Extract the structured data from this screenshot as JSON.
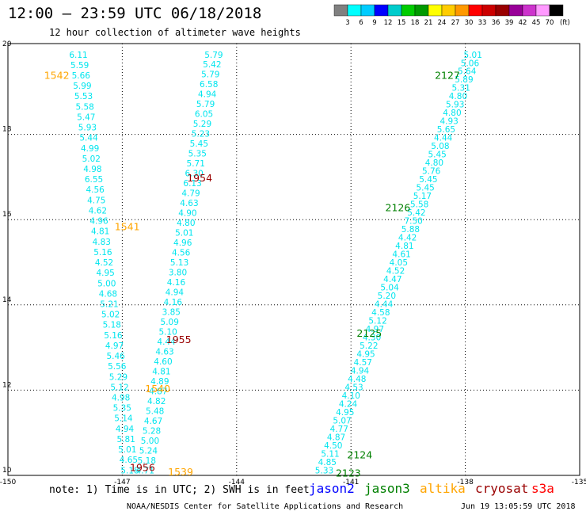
{
  "title": "12:00 – 23:59 UTC 06/18/2018",
  "subtitle": "12 hour collection of altimeter wave heights",
  "note": "note: 1) Time is in UTC; 2) SWH is in feet",
  "credit": "NOAA/NESDIS Center for Satellite Applications and Research",
  "timestamp": "Jun 19 13:05:59 UTC 2018",
  "colors": {
    "track": "#00e5ee",
    "jason2": "#0000ff",
    "jason3": "#008000",
    "altika": "#ffa500",
    "cryosat": "#990000",
    "s3a": "#ff0000"
  },
  "satellites": [
    "jason2",
    "jason3",
    "altika",
    "cryosat",
    "s3a"
  ],
  "colorbar": {
    "unit": "(ft)",
    "labels": [
      "3",
      "6",
      "9",
      "12",
      "15",
      "18",
      "21",
      "24",
      "27",
      "30",
      "33",
      "36",
      "39",
      "42",
      "45",
      "70"
    ],
    "colors": [
      "#808080",
      "#00ffff",
      "#00ccff",
      "#0000ff",
      "#00cccc",
      "#00cc00",
      "#009900",
      "#ffff00",
      "#ffcc00",
      "#ff9900",
      "#ff0000",
      "#cc0000",
      "#990000",
      "#990099",
      "#cc33cc",
      "#ff99ff",
      "#000000"
    ]
  },
  "axes": {
    "x_ticks": [
      "-150",
      "-147",
      "-144",
      "-141",
      "-138",
      "-135"
    ],
    "y_ticks": [
      "10",
      "12",
      "14",
      "16",
      "18",
      "20"
    ],
    "xlim": [
      -150,
      -135
    ],
    "ylim": [
      10,
      20
    ]
  },
  "tracks": [
    {
      "id": "A",
      "start": [
        -148.15,
        19.8
      ],
      "end": [
        -146.8,
        10.05
      ],
      "values": [
        "6.11",
        "5.59",
        "5.66",
        "5.99",
        "5.53",
        "5.58",
        "5.47",
        "5.93",
        "5.44",
        "4.99",
        "5.02",
        "4.98",
        "6.55",
        "4.56",
        "4.75",
        "4.62",
        "4.96",
        "4.81",
        "4.83",
        "5.16",
        "4.52",
        "4.95",
        "5.00",
        "4.68",
        "5.21",
        "5.02",
        "5.18",
        "5.16",
        "4.97",
        "5.46",
        "5.56",
        "5.29",
        "5.12",
        "4.98",
        "5.35",
        "5.14",
        "4.94",
        "5.81",
        "5.01",
        "4.65",
        "5.18"
      ]
    },
    {
      "id": "B",
      "start": [
        -144.6,
        19.8
      ],
      "end": [
        -146.4,
        10.05
      ],
      "values": [
        "5.79",
        "5.42",
        "5.79",
        "6.58",
        "4.94",
        "5.79",
        "6.05",
        "5.29",
        "5.23",
        "5.45",
        "5.35",
        "5.71",
        "6.30",
        "6.13",
        "4.79",
        "4.63",
        "4.90",
        "4.80",
        "5.01",
        "4.96",
        "4.56",
        "5.13",
        "3.80",
        "4.16",
        "4.94",
        "4.16",
        "3.85",
        "5.09",
        "5.10",
        "4.44",
        "4.63",
        "4.60",
        "4.81",
        "4.89",
        "4.87",
        "4.82",
        "5.48",
        "4.67",
        "5.28",
        "5.00",
        "5.24",
        "5.18",
        "4.71"
      ]
    },
    {
      "id": "C",
      "start": [
        -137.8,
        19.8
      ],
      "end": [
        -141.7,
        10.05
      ],
      "values": [
        "5.01",
        "5.06",
        "5.64",
        "5.89",
        "5.31",
        "4.80",
        "5.93",
        "4.80",
        "4.93",
        "5.65",
        "4.44",
        "5.08",
        "5.45",
        "4.80",
        "5.76",
        "5.45",
        "5.45",
        "5.17",
        "5.58",
        "5.42",
        "7.50",
        "5.88",
        "4.42",
        "4.81",
        "4.61",
        "4.05",
        "4.52",
        "4.47",
        "5.04",
        "5.20",
        "4.44",
        "4.58",
        "5.12",
        "4.97",
        "4.30",
        "5.22",
        "4.95",
        "4.57",
        "4.94",
        "4.48",
        "4.53",
        "4.10",
        "4.24",
        "4.95",
        "5.07",
        "4.77",
        "4.87",
        "4.50",
        "5.11",
        "4.85",
        "5.33"
      ]
    }
  ],
  "pass_labels": [
    {
      "text": "1542",
      "sat": "altika",
      "lon": -149.05,
      "lat": 19.3
    },
    {
      "text": "1541",
      "sat": "altika",
      "lon": -147.2,
      "lat": 15.75
    },
    {
      "text": "1540",
      "sat": "altika",
      "lon": -146.4,
      "lat": 11.95
    },
    {
      "text": "1539",
      "sat": "altika",
      "lon": -145.8,
      "lat": 10.0
    },
    {
      "text": "1954",
      "sat": "cryosat",
      "lon": -145.3,
      "lat": 16.9
    },
    {
      "text": "1955",
      "sat": "cryosat",
      "lon": -145.85,
      "lat": 13.1
    },
    {
      "text": "1956",
      "sat": "cryosat",
      "lon": -146.8,
      "lat": 10.1
    },
    {
      "text": "2127",
      "sat": "jason3",
      "lon": -138.8,
      "lat": 19.3
    },
    {
      "text": "2126",
      "sat": "jason3",
      "lon": -140.1,
      "lat": 16.2
    },
    {
      "text": "2125",
      "sat": "jason3",
      "lon": -140.85,
      "lat": 13.25
    },
    {
      "text": "2124",
      "sat": "jason3",
      "lon": -141.1,
      "lat": 10.4
    },
    {
      "text": "2123",
      "sat": "jason3",
      "lon": -141.4,
      "lat": 9.97
    }
  ]
}
